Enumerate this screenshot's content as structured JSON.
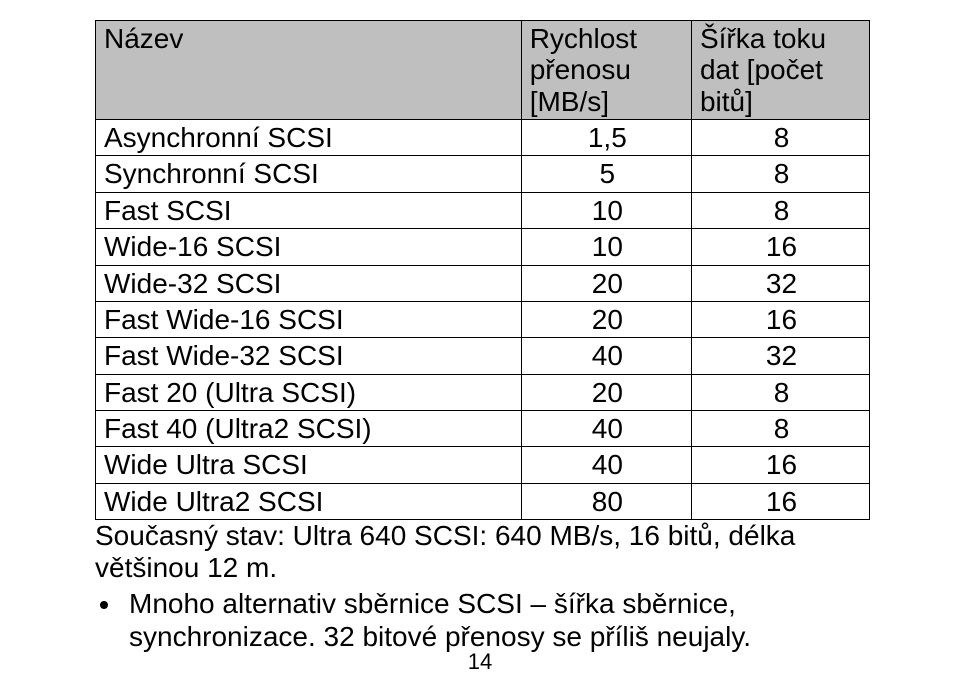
{
  "table": {
    "header_bg": "#bfbfbf",
    "columns": [
      {
        "label": "Název"
      },
      {
        "label": "Rychlost přenosu [MB/s]"
      },
      {
        "label": "Šířka toku dat [počet bitů]"
      }
    ],
    "rows": [
      {
        "name": "Asynchronní SCSI",
        "speed": "1,5",
        "width": "8"
      },
      {
        "name": "Synchronní SCSI",
        "speed": "5",
        "width": "8"
      },
      {
        "name": "Fast SCSI",
        "speed": "10",
        "width": "8"
      },
      {
        "name": "Wide-16 SCSI",
        "speed": "10",
        "width": "16"
      },
      {
        "name": "Wide-32 SCSI",
        "speed": "20",
        "width": "32"
      },
      {
        "name": "Fast Wide-16 SCSI",
        "speed": "20",
        "width": "16"
      },
      {
        "name": "Fast Wide-32 SCSI",
        "speed": "40",
        "width": "32"
      },
      {
        "name": "Fast 20 (Ultra SCSI)",
        "speed": "20",
        "width": "8"
      },
      {
        "name": "Fast 40 (Ultra2 SCSI)",
        "speed": "40",
        "width": "8"
      },
      {
        "name": "Wide Ultra SCSI",
        "speed": "40",
        "width": "16"
      },
      {
        "name": "Wide Ultra2 SCSI",
        "speed": "80",
        "width": "16"
      }
    ]
  },
  "caption": "Současný stav: Ultra 640 SCSI: 640 MB/s, 16 bitů, délka většinou 12 m.",
  "bullets": [
    "Mnoho alternativ sběrnice SCSI – šířka sběrnice, synchronizace. 32 bitové přenosy se příliš neujaly."
  ],
  "page_number": "14",
  "colors": {
    "text": "#000000",
    "background": "#ffffff",
    "header_bg": "#bfbfbf",
    "border": "#000000"
  },
  "typography": {
    "body_fontsize_pt": 21,
    "footer_fontsize_pt": 16,
    "font_family": "Arial"
  }
}
